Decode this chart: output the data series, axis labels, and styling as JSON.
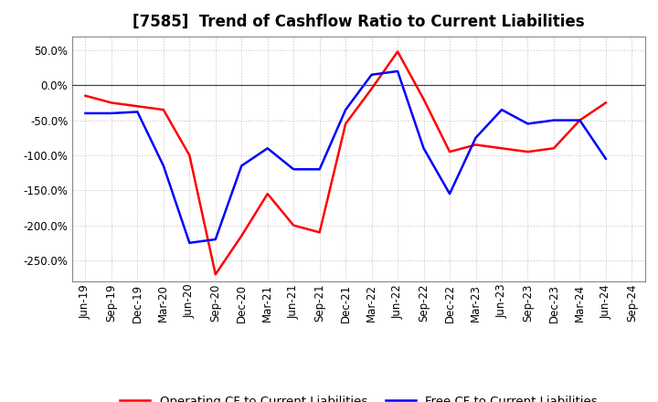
{
  "title": "[7585]  Trend of Cashflow Ratio to Current Liabilities",
  "x_labels": [
    "Jun-19",
    "Sep-19",
    "Dec-19",
    "Mar-20",
    "Jun-20",
    "Sep-20",
    "Dec-20",
    "Mar-21",
    "Jun-21",
    "Sep-21",
    "Dec-21",
    "Mar-22",
    "Jun-22",
    "Sep-22",
    "Dec-22",
    "Mar-23",
    "Jun-23",
    "Sep-23",
    "Dec-23",
    "Mar-24",
    "Jun-24",
    "Sep-24"
  ],
  "operating_cf": [
    -15.0,
    -25.0,
    -30.0,
    -35.0,
    -100.0,
    -270.0,
    -215.0,
    -155.0,
    -200.0,
    -210.0,
    -55.0,
    -5.0,
    48.0,
    -20.0,
    -95.0,
    -85.0,
    -90.0,
    -95.0,
    -90.0,
    -50.0,
    -25.0,
    null
  ],
  "free_cf": [
    -40.0,
    -40.0,
    -38.0,
    -115.0,
    -225.0,
    -220.0,
    -115.0,
    -90.0,
    -120.0,
    -120.0,
    -35.0,
    15.0,
    20.0,
    -90.0,
    -155.0,
    -75.0,
    -35.0,
    -55.0,
    -50.0,
    -50.0,
    -105.0,
    null
  ],
  "ylim": [
    -280.0,
    70.0
  ],
  "yticks": [
    50.0,
    0.0,
    -50.0,
    -100.0,
    -150.0,
    -200.0,
    -250.0
  ],
  "operating_color": "#FF0000",
  "free_color": "#0000FF",
  "bg_color": "#FFFFFF",
  "plot_bg_color": "#FFFFFF",
  "grid_color": "#BBBBBB",
  "legend_operating": "Operating CF to Current Liabilities",
  "legend_free": "Free CF to Current Liabilities",
  "title_fontsize": 12,
  "tick_fontsize": 8.5,
  "legend_fontsize": 9.5
}
